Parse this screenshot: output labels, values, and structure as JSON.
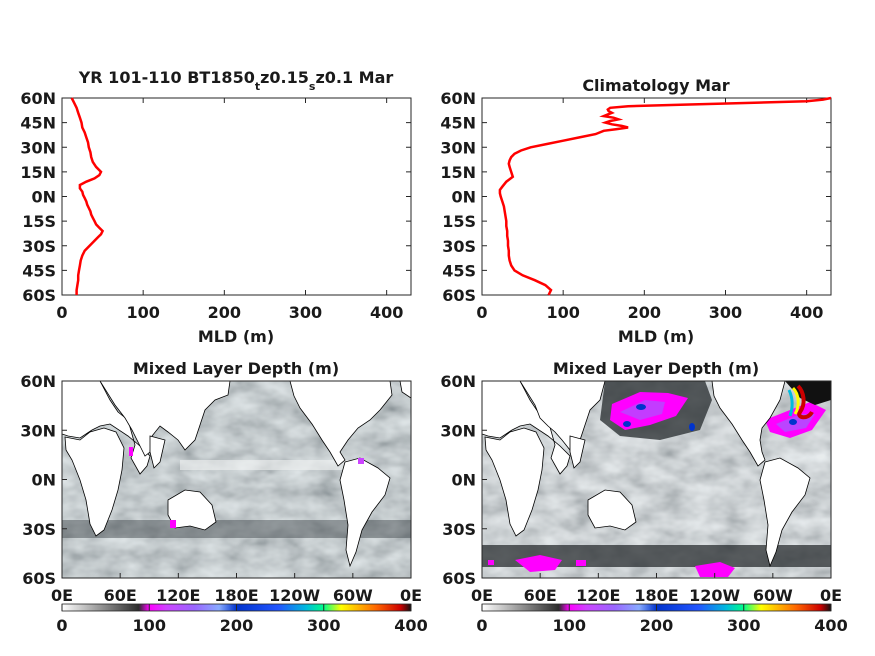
{
  "chart_data": [
    {
      "type": "line",
      "title": "YR 101-110 BT1850_tz0.15_sz0.1 Mar",
      "title_parts": {
        "a": "YR 101-110 BT1850",
        "sub1": "t",
        "b": "z0.15",
        "sub2": "s",
        "c": "z0.1 Mar"
      },
      "xlabel": "MLD (m)",
      "ylabel": "",
      "xlim": [
        0,
        430
      ],
      "ylim": [
        -60,
        60
      ],
      "x_ticks": [
        0,
        100,
        200,
        300,
        400
      ],
      "x_tick_labels": [
        "0",
        "100",
        "200",
        "300",
        "400"
      ],
      "y_ticks": [
        60,
        45,
        30,
        15,
        0,
        -15,
        -30,
        -45,
        -60
      ],
      "y_tick_labels": [
        "60N",
        "45N",
        "30N",
        "15N",
        "0N",
        "15S",
        "30S",
        "45S",
        "60S"
      ],
      "grid": false,
      "series": [
        {
          "color": "#ff0000",
          "lat": [
            60,
            57,
            54,
            51,
            48,
            45,
            42,
            39,
            36,
            33,
            30,
            27,
            24,
            21,
            18,
            15,
            13,
            11,
            9,
            7,
            5,
            3,
            1,
            -1,
            -3,
            -5,
            -7,
            -9,
            -11,
            -13,
            -15,
            -17,
            -19,
            -21,
            -23,
            -25,
            -27,
            -29,
            -31,
            -33,
            -36,
            -39,
            -42,
            -45,
            -48,
            -51,
            -54,
            -57,
            -60
          ],
          "mld": [
            12,
            15,
            18,
            20,
            22,
            24,
            25,
            28,
            30,
            32,
            33,
            35,
            36,
            38,
            42,
            48,
            46,
            40,
            30,
            22,
            22,
            25,
            26,
            28,
            30,
            31,
            33,
            35,
            36,
            38,
            40,
            42,
            46,
            50,
            48,
            44,
            40,
            36,
            32,
            28,
            25,
            23,
            22,
            21,
            20,
            20,
            19,
            18,
            18
          ]
        }
      ]
    },
    {
      "type": "line",
      "title": "Climatology Mar",
      "xlabel": "MLD (m)",
      "ylabel": "",
      "xlim": [
        0,
        430
      ],
      "ylim": [
        -60,
        60
      ],
      "x_ticks": [
        0,
        100,
        200,
        300,
        400
      ],
      "x_tick_labels": [
        "0",
        "100",
        "200",
        "300",
        "400"
      ],
      "y_ticks": [
        60,
        45,
        30,
        15,
        0,
        -15,
        -30,
        -45,
        -60
      ],
      "y_tick_labels": [
        "60N",
        "45N",
        "30N",
        "15N",
        "0N",
        "15S",
        "30S",
        "45S",
        "60S"
      ],
      "grid": false,
      "series": [
        {
          "color": "#ff0000",
          "lat": [
            60,
            59,
            58,
            57,
            56,
            55,
            54,
            53,
            52,
            51,
            50,
            49,
            48,
            47,
            46,
            45,
            44,
            43,
            42,
            41,
            40,
            38,
            36,
            34,
            32,
            30,
            28,
            26,
            24,
            22,
            20,
            18,
            15,
            12,
            9,
            6,
            4,
            2,
            0,
            -3,
            -6,
            -9,
            -12,
            -15,
            -18,
            -21,
            -24,
            -27,
            -30,
            -33,
            -36,
            -39,
            -42,
            -45,
            -48,
            -51,
            -54,
            -57,
            -60
          ],
          "mld": [
            430,
            420,
            400,
            330,
            250,
            180,
            158,
            155,
            156,
            160,
            155,
            150,
            162,
            168,
            158,
            152,
            160,
            172,
            180,
            165,
            150,
            140,
            120,
            100,
            80,
            60,
            48,
            40,
            36,
            34,
            33,
            34,
            36,
            38,
            30,
            25,
            22,
            22,
            23,
            25,
            27,
            28,
            29,
            30,
            30,
            31,
            31,
            32,
            32,
            33,
            33,
            34,
            36,
            40,
            50,
            65,
            78,
            85,
            82
          ]
        }
      ]
    },
    {
      "type": "heatmap",
      "title": "Mixed Layer Depth (m)",
      "x_tick_labels": [
        "0E",
        "60E",
        "120E",
        "180E",
        "120W",
        "60W",
        "0E"
      ],
      "y_tick_labels": [
        "60N",
        "30N",
        "0N",
        "30S",
        "60S"
      ],
      "colorbar": {
        "min": 0,
        "max": 400,
        "tick_labels": [
          "0",
          "100",
          "200",
          "300",
          "400"
        ]
      }
    },
    {
      "type": "heatmap",
      "title": "Mixed Layer Depth (m)",
      "x_tick_labels": [
        "0E",
        "60E",
        "120E",
        "180E",
        "120W",
        "60W",
        "0E"
      ],
      "y_tick_labels": [
        "60N",
        "30N",
        "0N",
        "30S",
        "60S"
      ],
      "colorbar": {
        "min": 0,
        "max": 400,
        "tick_labels": [
          "0",
          "100",
          "200",
          "300",
          "400"
        ]
      }
    }
  ]
}
